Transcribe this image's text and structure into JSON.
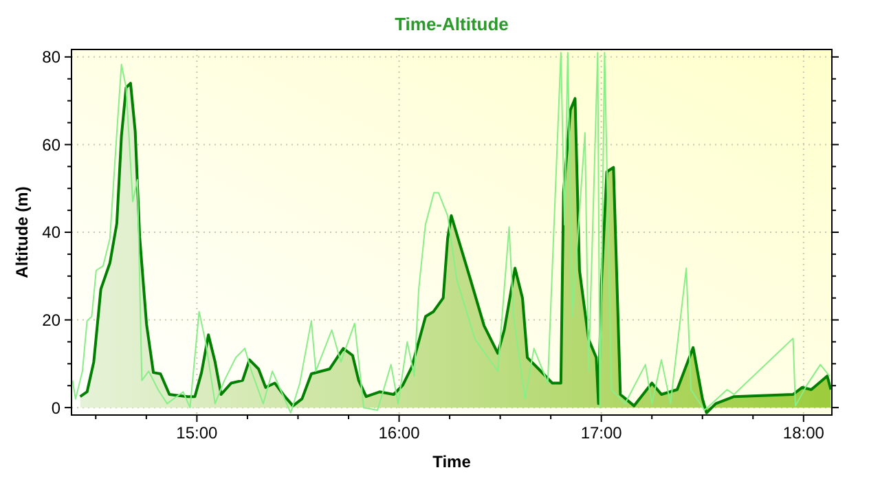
{
  "chart_data": {
    "type": "area",
    "title": "Time-Altitude",
    "xlabel": "Time",
    "ylabel": "Altitude (m)",
    "xlim": [
      14.38,
      18.14
    ],
    "xticks": [
      {
        "value": 14.5,
        "label": null
      },
      {
        "value": 14.75,
        "label": null
      },
      {
        "value": 15,
        "label": "15:00"
      },
      {
        "value": 15.25,
        "label": null
      },
      {
        "value": 15.5,
        "label": null
      },
      {
        "value": 15.75,
        "label": null
      },
      {
        "value": 16,
        "label": "16:00"
      },
      {
        "value": 16.25,
        "label": null
      },
      {
        "value": 16.5,
        "label": null
      },
      {
        "value": 16.75,
        "label": null
      },
      {
        "value": 17,
        "label": "17:00"
      },
      {
        "value": 17.25,
        "label": null
      },
      {
        "value": 17.5,
        "label": null
      },
      {
        "value": 17.75,
        "label": null
      },
      {
        "value": 18,
        "label": "18:00"
      }
    ],
    "ylim": [
      -1.7,
      81.7
    ],
    "yticks": [
      0,
      {
        "value": 5,
        "label": null
      },
      {
        "value": 10,
        "label": null
      },
      {
        "value": 15,
        "label": null
      },
      20,
      {
        "value": 25,
        "label": null
      },
      {
        "value": 30,
        "label": null
      },
      {
        "value": 35,
        "label": null
      },
      40,
      {
        "value": 45,
        "label": null
      },
      {
        "value": 50,
        "label": null
      },
      {
        "value": 55,
        "label": null
      },
      60,
      {
        "value": 65,
        "label": null
      },
      {
        "value": 70,
        "label": null
      },
      {
        "value": 75,
        "label": null
      },
      80
    ],
    "grid": true,
    "series": [
      {
        "type": "line",
        "color": "#88ee88",
        "x": [
          14.385,
          14.4,
          14.434,
          14.457,
          14.48,
          14.502,
          14.536,
          14.57,
          14.604,
          14.627,
          14.65,
          14.683,
          14.706,
          14.728,
          14.762,
          14.808,
          14.853,
          14.932,
          14.966,
          15.011,
          15.045,
          15.09,
          15.136,
          15.192,
          15.237,
          15.27,
          15.328,
          15.373,
          15.464,
          15.509,
          15.566,
          15.588,
          15.667,
          15.712,
          15.78,
          15.825,
          15.893,
          15.96,
          15.995,
          16.04,
          16.075,
          16.097,
          16.13,
          16.172,
          16.195,
          16.24,
          16.285,
          16.375,
          16.488,
          16.544,
          16.566,
          16.622,
          16.667,
          16.735,
          16.8,
          16.818,
          16.834,
          16.856,
          16.919,
          16.937,
          16.982,
          16.993,
          17.016,
          17.05,
          17.117,
          17.218,
          17.25,
          17.297,
          17.342,
          17.42,
          17.443,
          17.51,
          17.622,
          17.656,
          17.948,
          17.96,
          18.016,
          18.083,
          18.128
        ],
        "values": [
          6.2,
          2,
          8.3,
          19.8,
          20.8,
          31.3,
          32.3,
          38.6,
          62.7,
          78.3,
          73,
          47,
          52,
          6.2,
          8.3,
          4.1,
          0.9,
          3.6,
          0,
          21.9,
          14.5,
          0.9,
          6.2,
          11.4,
          13.5,
          8.3,
          0.9,
          8.3,
          -1.2,
          5.6,
          19.8,
          8.3,
          17.7,
          10.4,
          19.2,
          0,
          -0.6,
          9.8,
          0.9,
          15,
          7.2,
          27,
          41.7,
          49,
          49,
          43.8,
          29.2,
          15.6,
          8.3,
          41.2,
          20.8,
          2,
          13.5,
          5.6,
          81,
          41.7,
          81,
          20.8,
          62.7,
          8.3,
          81,
          0,
          81,
          4.1,
          0.9,
          9.8,
          0.9,
          10.9,
          0.9,
          31.8,
          4.1,
          -0.6,
          4.1,
          3,
          15.8,
          0.4,
          5.1,
          9.8,
          7.2
        ]
      },
      {
        "color": "#007f00",
        "x": [
          14.423,
          14.457,
          14.49,
          14.525,
          14.57,
          14.604,
          14.627,
          14.65,
          14.672,
          14.695,
          14.717,
          14.751,
          14.785,
          14.82,
          14.864,
          14.955,
          14.99,
          15.023,
          15.057,
          15.09,
          15.12,
          15.17,
          15.226,
          15.26,
          15.305,
          15.34,
          15.385,
          15.43,
          15.475,
          15.52,
          15.566,
          15.656,
          15.724,
          15.77,
          15.8,
          15.837,
          15.905,
          15.973,
          16.018,
          16.063,
          16.131,
          16.17,
          16.218,
          16.24,
          16.258,
          16.285,
          16.353,
          16.42,
          16.488,
          16.52,
          16.573,
          16.61,
          16.634,
          16.69,
          16.757,
          16.8,
          16.813,
          16.847,
          16.87,
          16.892,
          16.937,
          16.975,
          16.986,
          17.0,
          17.027,
          17.06,
          17.094,
          17.162,
          17.25,
          17.297,
          17.375,
          17.454,
          17.5,
          17.52,
          17.566,
          17.656,
          17.948,
          17.993,
          18.038,
          18.117,
          18.135
        ],
        "values": [
          2.5,
          3.6,
          10.4,
          27,
          33,
          42,
          62,
          73,
          74,
          63,
          39,
          19,
          8,
          7.7,
          3,
          2.5,
          2.5,
          8,
          16.6,
          10.4,
          3,
          5.6,
          6.2,
          10.9,
          8.8,
          4.6,
          5.6,
          2.8,
          0.4,
          2,
          7.7,
          8.8,
          13.5,
          11.9,
          6.2,
          2.5,
          3.6,
          3,
          5.1,
          9.3,
          20.8,
          21.9,
          25,
          38.6,
          43.8,
          39.6,
          29.2,
          18.7,
          12.4,
          17.7,
          31.8,
          25,
          11.4,
          8.8,
          5.6,
          5.6,
          49,
          67.9,
          70.5,
          31.3,
          15.6,
          11.4,
          0.9,
          28,
          53.8,
          54.8,
          3,
          0.4,
          5.6,
          3,
          4.1,
          13.7,
          2,
          -1.2,
          0.9,
          2.5,
          3,
          4.6,
          4.1,
          7.2,
          4.1
        ]
      }
    ]
  }
}
